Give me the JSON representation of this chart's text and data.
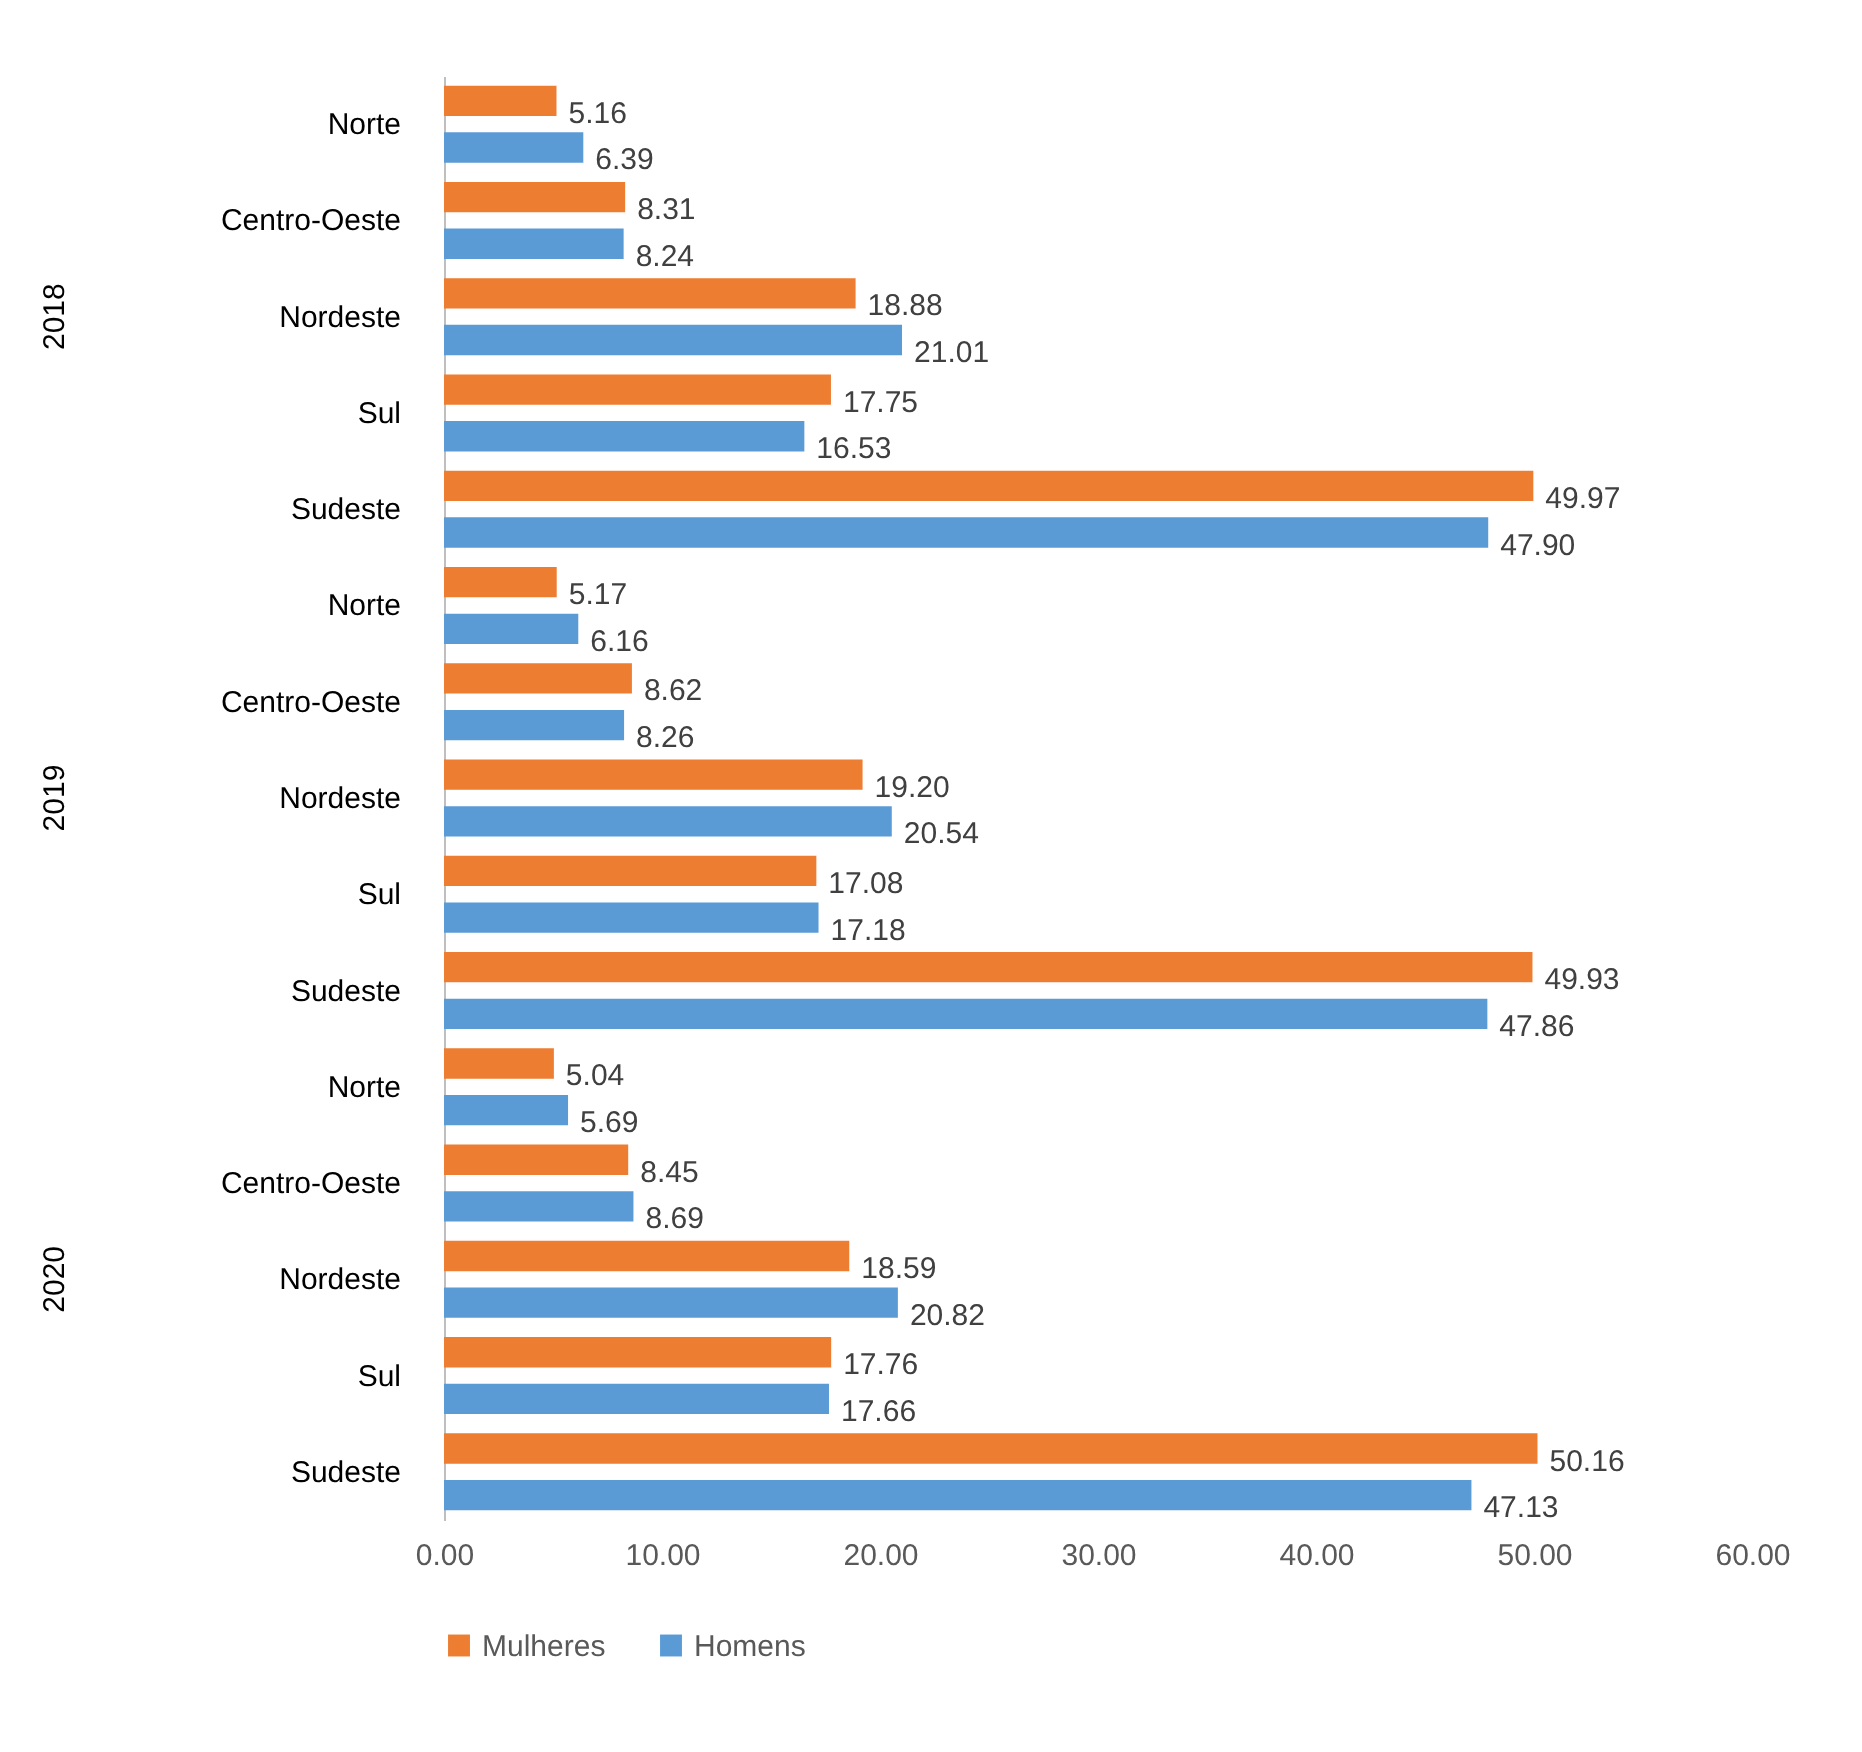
{
  "chart_data": {
    "type": "bar",
    "orientation": "horizontal",
    "categories": [
      "Norte",
      "Centro-Oeste",
      "Nordeste",
      "Sul",
      "Sudeste",
      "Norte",
      "Centro-Oeste",
      "Nordeste",
      "Sul",
      "Sudeste",
      "Norte",
      "Centro-Oeste",
      "Nordeste",
      "Sul",
      "Sudeste"
    ],
    "series": [
      {
        "name": "Mulheres",
        "color": "#ed7d31",
        "values": [
          5.16,
          8.31,
          18.88,
          17.75,
          49.97,
          5.17,
          8.62,
          19.2,
          17.08,
          49.93,
          5.04,
          8.45,
          18.59,
          17.76,
          50.16
        ],
        "value_labels": [
          "5.16",
          "8.31",
          "18.88",
          "17.75",
          "49.97",
          "5.17",
          "8.62",
          "19.20",
          "17.08",
          "49.93",
          "5.04",
          "8.45",
          "18.59",
          "17.76",
          "50.16"
        ]
      },
      {
        "name": "Homens",
        "color": "#5b9bd5",
        "values": [
          6.39,
          8.24,
          21.01,
          16.53,
          47.9,
          6.16,
          8.26,
          20.54,
          17.18,
          47.86,
          5.69,
          8.69,
          20.82,
          17.66,
          47.13
        ],
        "value_labels": [
          "6.39",
          "8.24",
          "21.01",
          "16.53",
          "47.90",
          "6.16",
          "8.26",
          "20.54",
          "17.18",
          "47.86",
          "5.69",
          "8.69",
          "20.82",
          "17.66",
          "47.13"
        ]
      }
    ],
    "xlim": [
      0,
      60
    ],
    "xticks": [
      {
        "value": 0,
        "label": "0.00"
      },
      {
        "value": 10,
        "label": "10.00"
      },
      {
        "value": 20,
        "label": "20.00"
      },
      {
        "value": 30,
        "label": "30.00"
      },
      {
        "value": 40,
        "label": "40.00"
      },
      {
        "value": 50,
        "label": "50.00"
      },
      {
        "value": 60,
        "label": "60.00"
      }
    ],
    "annotations": [
      "2018",
      "2019",
      "2020"
    ],
    "legend": "bottom"
  }
}
